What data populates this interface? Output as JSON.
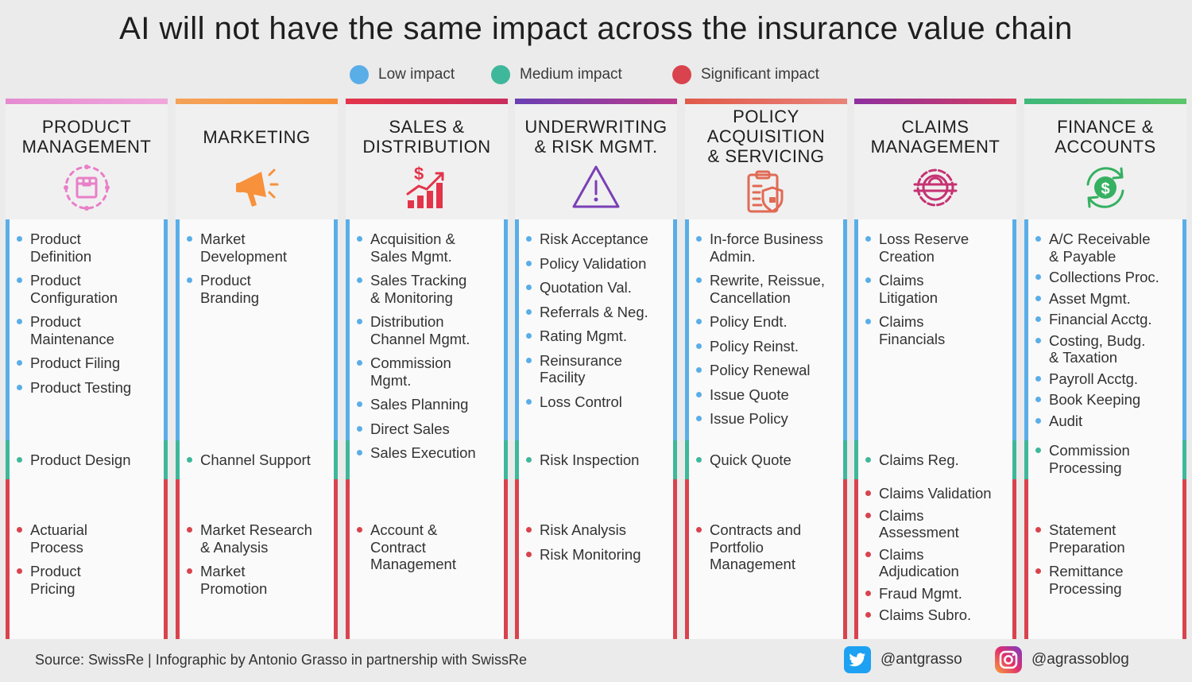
{
  "title": "AI will not have the same impact across the insurance value chain",
  "legend": [
    {
      "label": "Low impact",
      "color": "#5aaee8"
    },
    {
      "label": "Medium impact",
      "color": "#3fb79a"
    },
    {
      "label": "Significant impact",
      "color": "#d9434d"
    }
  ],
  "columns": [
    {
      "title": [
        "PRODUCT",
        "MANAGEMENT"
      ],
      "icon": "product-box-icon",
      "low": [
        [
          "Product",
          "Definition"
        ],
        [
          "Product",
          "Configuration"
        ],
        [
          "Product",
          "Maintenance"
        ],
        [
          "Product Filing"
        ],
        [
          "Product Testing"
        ]
      ],
      "medium": [
        [
          "Product Design"
        ]
      ],
      "significant": [
        [
          "Actuarial",
          "Process"
        ],
        [
          "Product",
          "Pricing"
        ]
      ]
    },
    {
      "title": [
        "MARKETING"
      ],
      "icon": "megaphone-icon",
      "low": [
        [
          "Market",
          "Development"
        ],
        [
          "Product",
          "Branding"
        ]
      ],
      "medium": [
        [
          "Channel Support"
        ]
      ],
      "significant": [
        [
          "Market Research",
          "& Analysis"
        ],
        [
          "Market",
          "Promotion"
        ]
      ]
    },
    {
      "title": [
        "SALES &",
        "DISTRIBUTION"
      ],
      "icon": "sales-growth-icon",
      "low": [
        [
          "Acquisition &",
          "Sales Mgmt."
        ],
        [
          "Sales Tracking",
          "& Monitoring"
        ],
        [
          "Distribution",
          "Channel Mgmt."
        ],
        [
          "Commission",
          "Mgmt."
        ],
        [
          "Sales Planning"
        ],
        [
          "Direct Sales"
        ],
        [
          "Sales Execution"
        ]
      ],
      "medium": [],
      "significant": [
        [
          "Account &",
          "Contract",
          "Management"
        ]
      ]
    },
    {
      "title": [
        "UNDERWRITING",
        "& RISK MGMT."
      ],
      "icon": "warning-icon",
      "low": [
        [
          "Risk Acceptance"
        ],
        [
          "Policy Validation"
        ],
        [
          "Quotation Val."
        ],
        [
          "Referrals & Neg."
        ],
        [
          "Rating Mgmt."
        ],
        [
          "Reinsurance",
          "Facility"
        ],
        [
          "Loss Control"
        ]
      ],
      "medium": [
        [
          "Risk Inspection"
        ]
      ],
      "significant": [
        [
          "Risk Analysis"
        ],
        [
          "Risk Monitoring"
        ]
      ]
    },
    {
      "title": [
        "POLICY",
        "ACQUISITION",
        "& SERVICING"
      ],
      "icon": "policy-document-icon",
      "low": [
        [
          "In-force Business",
          "Admin."
        ],
        [
          "Rewrite, Reissue,",
          "Cancellation"
        ],
        [
          "Policy Endt."
        ],
        [
          "Policy Reinst."
        ],
        [
          "Policy Renewal"
        ],
        [
          "Issue Quote"
        ],
        [
          "Issue Policy"
        ]
      ],
      "medium": [
        [
          "Quick Quote"
        ]
      ],
      "significant": [
        [
          "Contracts and",
          "Portfolio",
          "Management"
        ]
      ]
    },
    {
      "title": [
        "CLAIMS",
        "MANAGEMENT"
      ],
      "icon": "claims-gear-icon",
      "low": [
        [
          "Loss Reserve",
          "Creation"
        ],
        [
          "Claims",
          "Litigation"
        ],
        [
          "Claims",
          "Financials"
        ]
      ],
      "medium": [
        [
          "Claims Reg."
        ]
      ],
      "significant": [
        [
          "Claims Validation"
        ],
        [
          "Claims",
          "Assessment"
        ],
        [
          "Claims",
          "Adjudication"
        ],
        [
          "Fraud Mgmt."
        ],
        [
          "Claims Subro."
        ]
      ]
    },
    {
      "title": [
        "FINANCE &",
        "ACCOUNTS"
      ],
      "icon": "finance-cycle-icon",
      "low": [
        [
          "A/C Receivable",
          "& Payable"
        ],
        [
          "Collections Proc."
        ],
        [
          "Asset Mgmt."
        ],
        [
          "Financial Acctg."
        ],
        [
          "Costing, Budg.",
          "& Taxation"
        ],
        [
          "Payroll Acctg."
        ],
        [
          "Book Keeping"
        ],
        [
          "Audit"
        ]
      ],
      "medium": [
        [
          "Commission",
          "Processing"
        ]
      ],
      "significant": [
        [
          "Statement",
          "Preparation"
        ],
        [
          "Remittance",
          "Processing"
        ]
      ]
    }
  ],
  "footer": {
    "source": "Source: SwissRe | Infographic by Antonio Grasso in partnership with SwissRe",
    "twitter_handle": "@antgrasso",
    "instagram_handle": "@agrassoblog"
  }
}
